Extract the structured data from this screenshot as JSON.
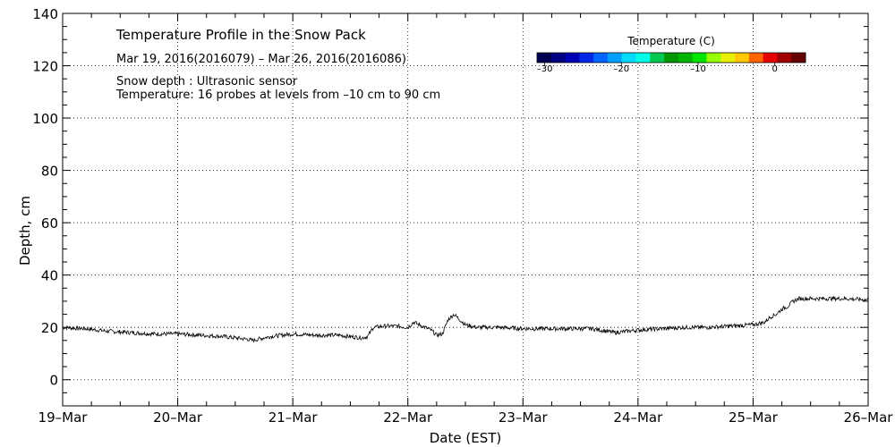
{
  "chart_data": {
    "type": "line",
    "title": "Temperature Profile in the Snow Pack",
    "subtitle": "Mar 19, 2016(2016079) – Mar 26, 2016(2016086)",
    "notes": [
      "Snow depth : Ultrasonic sensor",
      "Temperature: 16 probes at levels from –10 cm to 90 cm"
    ],
    "xlabel": "Date (EST)",
    "ylabel": "Depth, cm",
    "x_tick_labels": [
      "19–Mar",
      "20–Mar",
      "21–Mar",
      "22–Mar",
      "23–Mar",
      "24–Mar",
      "25–Mar",
      "26–Mar"
    ],
    "xlim": [
      0,
      7
    ],
    "ylim": [
      -10,
      140
    ],
    "y_ticks": [
      0,
      20,
      40,
      60,
      80,
      100,
      120,
      140
    ],
    "grid": true,
    "line_color": "#000000",
    "series": [
      {
        "x": [
          0.0,
          0.2,
          0.4,
          0.6,
          0.8,
          1.0,
          1.2,
          1.4,
          1.6,
          1.65,
          1.8,
          2.0,
          2.2,
          2.4,
          2.5,
          2.6,
          2.65,
          2.7,
          2.8,
          2.9,
          3.0,
          3.05,
          3.2,
          3.25,
          3.3,
          3.35,
          3.4,
          3.5,
          3.6,
          3.8,
          4.0,
          4.2,
          4.4,
          4.6,
          4.8,
          5.0,
          5.2,
          5.4,
          5.6,
          5.8,
          6.0,
          6.1,
          6.15,
          6.2,
          6.25,
          6.3,
          6.35,
          6.4,
          6.5,
          6.6,
          6.8,
          7.0
        ],
        "y": [
          20,
          19.5,
          18.5,
          18,
          17.5,
          17.5,
          17,
          16.5,
          15.5,
          15,
          16.5,
          17.5,
          17,
          17,
          16.5,
          16,
          16.5,
          20,
          20.5,
          20.5,
          20,
          22,
          19,
          17,
          17.5,
          23,
          25,
          21,
          20,
          20,
          19.5,
          19.5,
          19.5,
          19.5,
          18,
          19,
          19.5,
          20,
          20,
          20.5,
          21,
          22,
          24,
          25,
          27,
          28,
          30,
          31,
          31,
          31,
          31,
          30.5
        ]
      }
    ],
    "colorbar": {
      "title": "Temperature (C)",
      "range": [
        -31,
        4
      ],
      "tick_values": [
        -30,
        -20,
        -10,
        0
      ],
      "tick_labels": [
        "–30",
        "–20",
        "–10",
        "0"
      ],
      "colors": [
        "#000050",
        "#000080",
        "#0000b4",
        "#0028e6",
        "#0064ff",
        "#00a0ff",
        "#00dcff",
        "#00ffe6",
        "#00c850",
        "#009600",
        "#00b400",
        "#00e600",
        "#96ff00",
        "#e6f000",
        "#ffc800",
        "#ff6400",
        "#e60000",
        "#a00000",
        "#640000"
      ]
    }
  }
}
